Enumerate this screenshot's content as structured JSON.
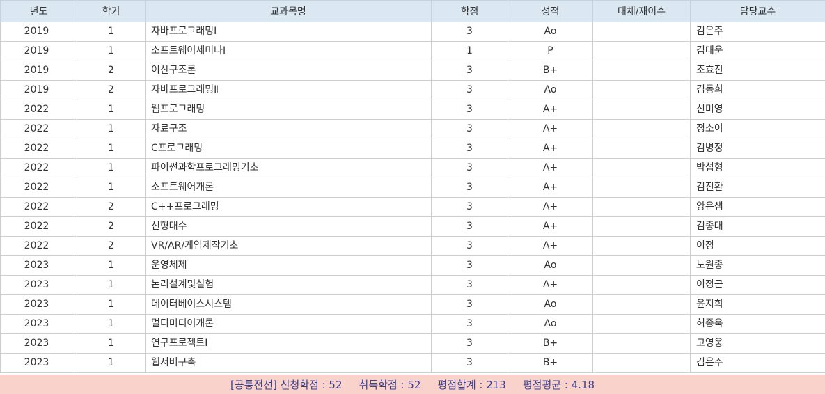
{
  "columns": [
    "년도",
    "학기",
    "교과목명",
    "학점",
    "성적",
    "대체/재이수",
    "담당교수"
  ],
  "rows": [
    {
      "year": "2019",
      "term": "1",
      "subject": "자바프로그래밍Ⅰ",
      "credit": "3",
      "grade": "Ao",
      "retake": "",
      "professor": "김은주"
    },
    {
      "year": "2019",
      "term": "1",
      "subject": "소프트웨어세미나I",
      "credit": "1",
      "grade": "P",
      "retake": "",
      "professor": "김태운"
    },
    {
      "year": "2019",
      "term": "2",
      "subject": "이산구조론",
      "credit": "3",
      "grade": "B+",
      "retake": "",
      "professor": "조효진"
    },
    {
      "year": "2019",
      "term": "2",
      "subject": "자바프로그래밍Ⅱ",
      "credit": "3",
      "grade": "Ao",
      "retake": "",
      "professor": "김동희"
    },
    {
      "year": "2022",
      "term": "1",
      "subject": "웹프로그래밍",
      "credit": "3",
      "grade": "A+",
      "retake": "",
      "professor": "신미영"
    },
    {
      "year": "2022",
      "term": "1",
      "subject": "자료구조",
      "credit": "3",
      "grade": "A+",
      "retake": "",
      "professor": "정소이"
    },
    {
      "year": "2022",
      "term": "1",
      "subject": "C프로그래밍",
      "credit": "3",
      "grade": "A+",
      "retake": "",
      "professor": "김병정"
    },
    {
      "year": "2022",
      "term": "1",
      "subject": "파이썬과학프로그래밍기초",
      "credit": "3",
      "grade": "A+",
      "retake": "",
      "professor": "박섭형"
    },
    {
      "year": "2022",
      "term": "1",
      "subject": "소프트웨어개론",
      "credit": "3",
      "grade": "A+",
      "retake": "",
      "professor": "김진환"
    },
    {
      "year": "2022",
      "term": "2",
      "subject": "C++프로그래밍",
      "credit": "3",
      "grade": "A+",
      "retake": "",
      "professor": "양은샘"
    },
    {
      "year": "2022",
      "term": "2",
      "subject": "선형대수",
      "credit": "3",
      "grade": "A+",
      "retake": "",
      "professor": "김종대"
    },
    {
      "year": "2022",
      "term": "2",
      "subject": "VR/AR/게임제작기초",
      "credit": "3",
      "grade": "A+",
      "retake": "",
      "professor": "이정"
    },
    {
      "year": "2023",
      "term": "1",
      "subject": "운영체제",
      "credit": "3",
      "grade": "Ao",
      "retake": "",
      "professor": "노원종"
    },
    {
      "year": "2023",
      "term": "1",
      "subject": "논리설계및실험",
      "credit": "3",
      "grade": "A+",
      "retake": "",
      "professor": "이정근"
    },
    {
      "year": "2023",
      "term": "1",
      "subject": "데이터베이스시스템",
      "credit": "3",
      "grade": "Ao",
      "retake": "",
      "professor": "윤지희"
    },
    {
      "year": "2023",
      "term": "1",
      "subject": "멀티미디어개론",
      "credit": "3",
      "grade": "Ao",
      "retake": "",
      "professor": "허종욱"
    },
    {
      "year": "2023",
      "term": "1",
      "subject": "연구프로젝트I",
      "credit": "3",
      "grade": "B+",
      "retake": "",
      "professor": "고영웅"
    },
    {
      "year": "2023",
      "term": "1",
      "subject": "웹서버구축",
      "credit": "3",
      "grade": "B+",
      "retake": "",
      "professor": "김은주"
    }
  ],
  "summary": {
    "category": "[공통전선]",
    "applied_label": "신청학점 : 52",
    "earned_label": "취득학점 : 52",
    "total_label": "평점합계 : 213",
    "average_label": "평점평균 :  4.18"
  }
}
